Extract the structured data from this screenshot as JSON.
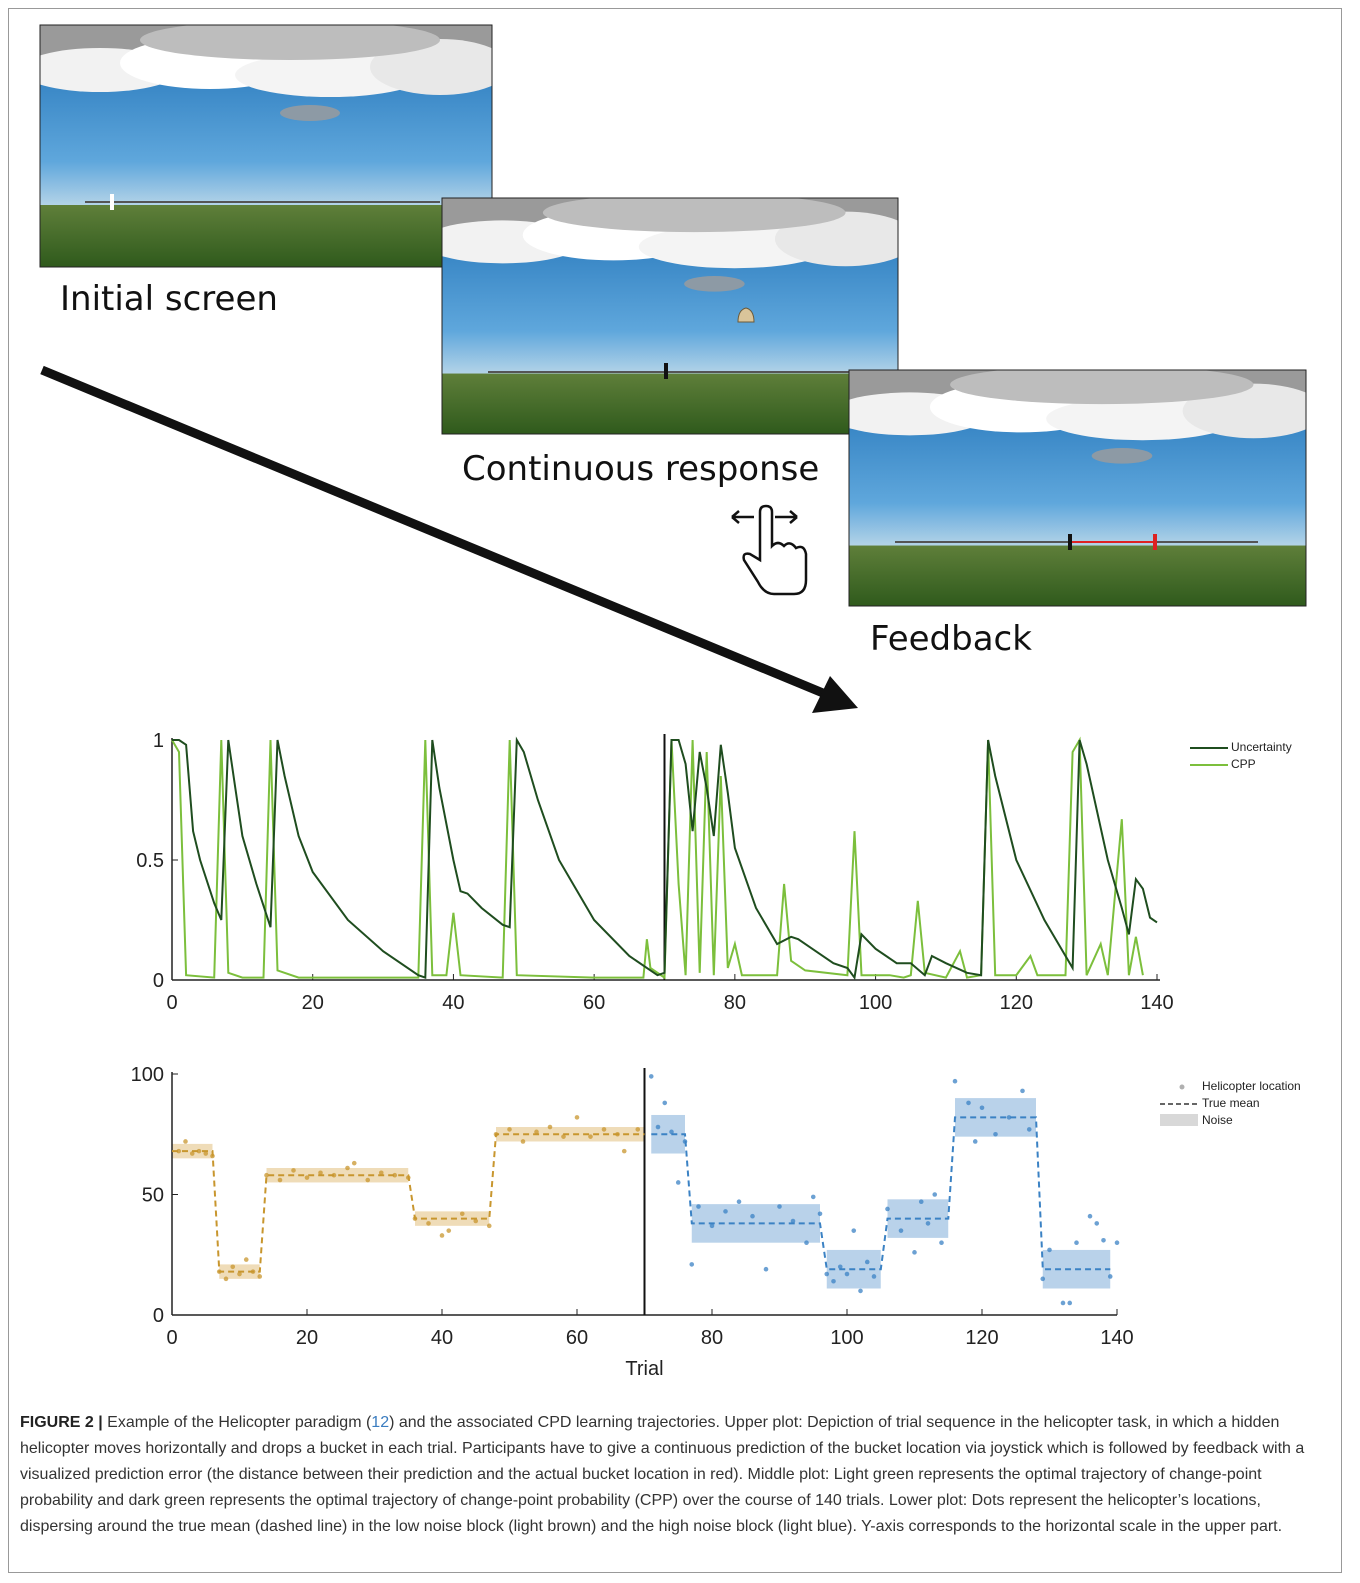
{
  "panels": [
    {
      "label": "Initial screen"
    },
    {
      "label": "Continuous response"
    },
    {
      "label": "Feedback"
    }
  ],
  "chart_data": [
    {
      "type": "line",
      "xlim": [
        0,
        140
      ],
      "ylim": [
        0,
        1
      ],
      "xticks": [
        0,
        20,
        40,
        60,
        80,
        100,
        120,
        140
      ],
      "yticks": [
        0,
        0.5,
        1
      ],
      "divider": 70,
      "legend": "top-right",
      "series": [
        {
          "name": "Uncertainty",
          "color": "#1f4d1f",
          "x": [
            0,
            1,
            2,
            3,
            4,
            6,
            7,
            8,
            9,
            10,
            12,
            14,
            15,
            16,
            18,
            20,
            25,
            30,
            35,
            36,
            37,
            38,
            40,
            41,
            42,
            44,
            47,
            48,
            49,
            50,
            52,
            55,
            60,
            65,
            69,
            70,
            71,
            72,
            73,
            74,
            75,
            76,
            77,
            78,
            79,
            80,
            83,
            86,
            88,
            89,
            91,
            94,
            96,
            97,
            98,
            100,
            103,
            105,
            107,
            108,
            110,
            113,
            115,
            116,
            117,
            120,
            124,
            128,
            129,
            130,
            133,
            135,
            136,
            137,
            138,
            139,
            140
          ],
          "values": [
            1,
            1,
            0.98,
            0.62,
            0.5,
            0.32,
            0.25,
            1,
            0.8,
            0.6,
            0.4,
            0.22,
            1,
            0.85,
            0.6,
            0.45,
            0.25,
            0.12,
            0.02,
            0.01,
            1,
            0.8,
            0.5,
            0.37,
            0.36,
            0.3,
            0.23,
            0.22,
            1,
            0.95,
            0.75,
            0.5,
            0.25,
            0.1,
            0.02,
            0.03,
            1,
            1,
            0.9,
            0.62,
            0.95,
            0.8,
            0.6,
            0.98,
            0.78,
            0.55,
            0.3,
            0.15,
            0.18,
            0.17,
            0.13,
            0.07,
            0.05,
            0.01,
            0.19,
            0.13,
            0.07,
            0.07,
            0.02,
            0.1,
            0.07,
            0.03,
            0.02,
            1,
            0.85,
            0.5,
            0.25,
            0.05,
            1,
            0.9,
            0.5,
            0.3,
            0.19,
            0.42,
            0.38,
            0.26,
            0.24
          ]
        },
        {
          "name": "CPP",
          "color": "#7cbf3c",
          "x": [
            0,
            1,
            2,
            6,
            7,
            8,
            10,
            13,
            14,
            15,
            18,
            35,
            36,
            37,
            39,
            40,
            41,
            47,
            48,
            49,
            60,
            67,
            67.5,
            68,
            70,
            71,
            72,
            73,
            74,
            75,
            76,
            77,
            78,
            79,
            80,
            81,
            86,
            87,
            88,
            90,
            96,
            97,
            98,
            102,
            104,
            105,
            106,
            107,
            110,
            112,
            113,
            115,
            116,
            117,
            120,
            122,
            123,
            127,
            128,
            129,
            130,
            132,
            133,
            135,
            136,
            137,
            138
          ],
          "values": [
            1,
            0.95,
            0.02,
            0.01,
            1,
            0.03,
            0.01,
            0.01,
            1,
            0.04,
            0.01,
            0.01,
            1,
            0.02,
            0.02,
            0.28,
            0.02,
            0.01,
            1,
            0.02,
            0.01,
            0.01,
            0.17,
            0.05,
            0.01,
            1,
            0.4,
            0.02,
            1,
            0.03,
            0.95,
            0.02,
            0.85,
            0.05,
            0.15,
            0.02,
            0.02,
            0.4,
            0.08,
            0.04,
            0.02,
            0.62,
            0.02,
            0.02,
            0.01,
            0.02,
            0.33,
            0.03,
            0.01,
            0.12,
            0.01,
            0.02,
            1,
            0.02,
            0.02,
            0.1,
            0.02,
            0.02,
            0.95,
            1,
            0.02,
            0.15,
            0.02,
            0.67,
            0.02,
            0.18,
            0.02
          ]
        }
      ]
    },
    {
      "type": "scatter",
      "xlabel": "Trial",
      "xlim": [
        0,
        140
      ],
      "ylim": [
        0,
        100
      ],
      "xticks": [
        0,
        20,
        40,
        60,
        80,
        100,
        120,
        140
      ],
      "yticks": [
        0,
        50,
        100
      ],
      "divider": 70,
      "legend": [
        "Helicopter location",
        "True mean",
        "Noise"
      ],
      "legend_color": "#b0b0b0",
      "blocks": [
        {
          "color": "#c8962e",
          "band_color": "#efdcb8",
          "locations": {
            "x": [
              1,
              2,
              3,
              4,
              5,
              6,
              7,
              8,
              9,
              10,
              11,
              12,
              13,
              14,
              16,
              18,
              20,
              22,
              24,
              26,
              27,
              29,
              31,
              33,
              35,
              36,
              38,
              40,
              41,
              43,
              45,
              47,
              48,
              50,
              52,
              54,
              56,
              58,
              60,
              62,
              64,
              66,
              67,
              69
            ],
            "y": [
              68,
              72,
              67,
              68,
              67,
              66,
              18,
              15,
              20,
              17,
              23,
              18,
              16,
              58,
              56,
              60,
              57,
              59,
              58,
              61,
              63,
              56,
              59,
              58,
              57,
              40,
              38,
              33,
              35,
              42,
              39,
              37,
              75,
              77,
              72,
              76,
              78,
              74,
              82,
              74,
              77,
              75,
              68,
              77
            ]
          },
          "mean": {
            "x": [
              0,
              6,
              7,
              13,
              14,
              35,
              36,
              47,
              48,
              70
            ],
            "y": [
              68,
              68,
              18,
              18,
              58,
              58,
              40,
              40,
              75,
              75
            ]
          },
          "noise": [
            {
              "x": [
                0,
                6
              ],
              "y": [
                65,
                71
              ]
            },
            {
              "x": [
                7,
                13
              ],
              "y": [
                15,
                21
              ]
            },
            {
              "x": [
                14,
                35
              ],
              "y": [
                55,
                61
              ]
            },
            {
              "x": [
                36,
                47
              ],
              "y": [
                37,
                43
              ]
            },
            {
              "x": [
                48,
                70
              ],
              "y": [
                72,
                78
              ]
            }
          ]
        },
        {
          "color": "#3b82c4",
          "band_color": "#b9d2ea",
          "locations": {
            "x": [
              71,
              72,
              73,
              74,
              75,
              76,
              77,
              78,
              80,
              82,
              84,
              86,
              88,
              90,
              92,
              94,
              95,
              96,
              97,
              98,
              99,
              100,
              101,
              102,
              103,
              104,
              106,
              108,
              110,
              111,
              112,
              113,
              114,
              116,
              118,
              119,
              120,
              122,
              124,
              126,
              127,
              129,
              130,
              132,
              133,
              134,
              136,
              137,
              138,
              139,
              140
            ],
            "y": [
              99,
              78,
              88,
              76,
              55,
              72,
              21,
              45,
              37,
              43,
              47,
              41,
              19,
              45,
              39,
              30,
              49,
              42,
              17,
              14,
              20,
              17,
              35,
              10,
              22,
              16,
              44,
              35,
              26,
              47,
              38,
              50,
              30,
              97,
              88,
              72,
              86,
              75,
              82,
              93,
              77,
              15,
              27,
              5,
              5,
              30,
              41,
              38,
              31,
              16,
              30
            ]
          },
          "mean": {
            "x": [
              71,
              76,
              77,
              96,
              97,
              105,
              106,
              115,
              116,
              128,
              129,
              139
            ],
            "y": [
              75,
              75,
              38,
              38,
              19,
              19,
              40,
              40,
              82,
              82,
              19,
              19
            ]
          },
          "noise": [
            {
              "x": [
                71,
                76
              ],
              "y": [
                67,
                83
              ]
            },
            {
              "x": [
                77,
                96
              ],
              "y": [
                30,
                46
              ]
            },
            {
              "x": [
                97,
                105
              ],
              "y": [
                11,
                27
              ]
            },
            {
              "x": [
                106,
                115
              ],
              "y": [
                32,
                48
              ]
            },
            {
              "x": [
                116,
                128
              ],
              "y": [
                74,
                90
              ]
            },
            {
              "x": [
                129,
                139
              ],
              "y": [
                11,
                27
              ]
            }
          ]
        }
      ]
    }
  ],
  "caption": {
    "label": "FIGURE 2 |",
    "before_ref": "Example of the Helicopter paradigm (",
    "ref": "12",
    "after_ref": ") and the associated CPD learning trajectories. Upper plot: Depiction of trial sequence in the helicopter task, in which a hidden helicopter moves horizontally and drops a bucket in each trial. Participants have to give a continuous prediction of the bucket location via joystick which is followed by feedback with a visualized prediction error (the distance between their prediction and the actual bucket location in red). Middle plot: Light green represents the optimal trajectory of change-point probability and dark green represents the optimal trajectory of change-point probability (CPP) over the course of 140 trials. Lower plot: Dots represent the helicopter’s locations, dispersing around the true mean (dashed line) in the low noise block (light brown) and the high noise block (light blue). Y-axis corresponds to the horizontal scale in the upper part."
  }
}
